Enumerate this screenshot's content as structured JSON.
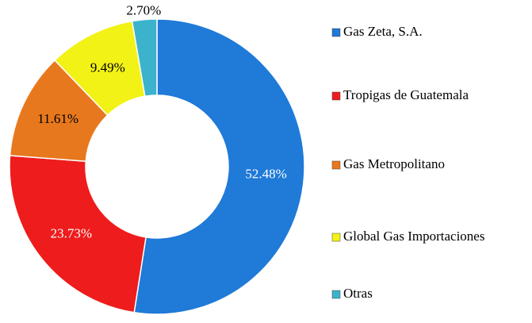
{
  "chart_data": {
    "type": "donut",
    "categories": [
      "Gas Zeta, S.A.",
      "Tropigas de Guatemala",
      "Gas Metropolitano",
      "Global Gas Importaciones",
      "Otras"
    ],
    "values": [
      52.48,
      23.73,
      11.61,
      9.49,
      2.7
    ],
    "value_labels": [
      "52.48%",
      "23.73%",
      "11.61%",
      "9.49%",
      "2.70%"
    ],
    "colors": [
      "#1f7ad8",
      "#ee1c1c",
      "#e8781e",
      "#f2f216",
      "#3cb3cc"
    ],
    "legend": "right"
  }
}
